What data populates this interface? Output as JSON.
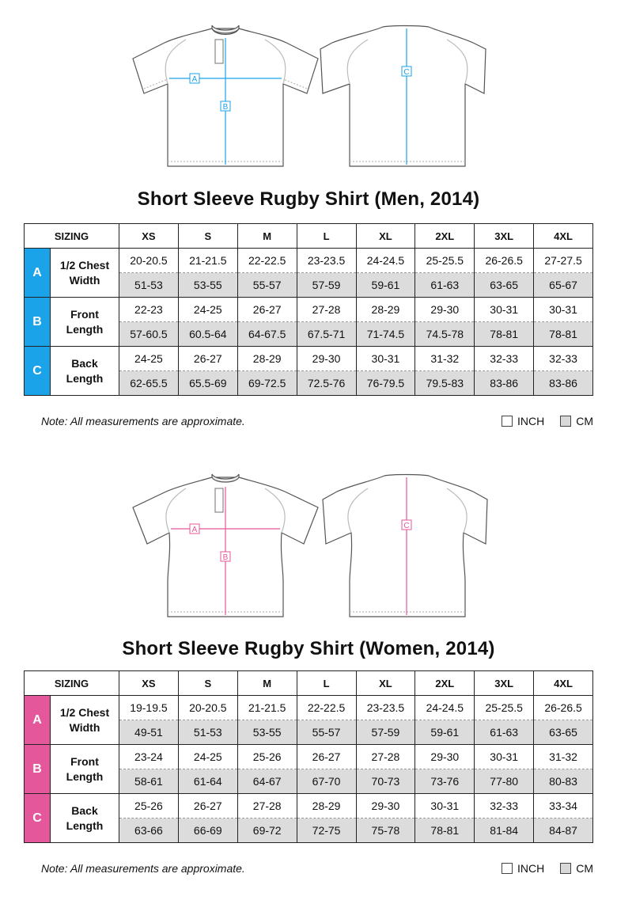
{
  "colors": {
    "men_accent": "#1aa3e8",
    "women_accent": "#e5579b",
    "cm_row": "#dcdcdc"
  },
  "sizes": [
    "XS",
    "S",
    "M",
    "L",
    "XL",
    "2XL",
    "3XL",
    "4XL"
  ],
  "men": {
    "title": "Short Sleeve Rugby Shirt (Men, 2014)",
    "sizing_label": "SIZING",
    "diagram_labels": [
      "A",
      "B",
      "C"
    ],
    "rows": [
      {
        "letter": "A",
        "label_line1": "1/2 Chest",
        "label_line2": "Width",
        "inch": [
          "20-20.5",
          "21-21.5",
          "22-22.5",
          "23-23.5",
          "24-24.5",
          "25-25.5",
          "26-26.5",
          "27-27.5"
        ],
        "cm": [
          "51-53",
          "53-55",
          "55-57",
          "57-59",
          "59-61",
          "61-63",
          "63-65",
          "65-67"
        ]
      },
      {
        "letter": "B",
        "label_line1": "Front",
        "label_line2": "Length",
        "inch": [
          "22-23",
          "24-25",
          "26-27",
          "27-28",
          "28-29",
          "29-30",
          "30-31",
          "30-31"
        ],
        "cm": [
          "57-60.5",
          "60.5-64",
          "64-67.5",
          "67.5-71",
          "71-74.5",
          "74.5-78",
          "78-81",
          "78-81"
        ]
      },
      {
        "letter": "C",
        "label_line1": "Back",
        "label_line2": "Length",
        "inch": [
          "24-25",
          "26-27",
          "28-29",
          "29-30",
          "30-31",
          "31-32",
          "32-33",
          "32-33"
        ],
        "cm": [
          "62-65.5",
          "65.5-69",
          "69-72.5",
          "72.5-76",
          "76-79.5",
          "79.5-83",
          "83-86",
          "83-86"
        ]
      }
    ],
    "note": "Note: All measurements are approximate.",
    "legend_inch": "INCH",
    "legend_cm": "CM"
  },
  "women": {
    "title": "Short Sleeve Rugby Shirt (Women, 2014)",
    "sizing_label": "SIZING",
    "diagram_labels": [
      "A",
      "B",
      "C"
    ],
    "rows": [
      {
        "letter": "A",
        "label_line1": "1/2 Chest",
        "label_line2": "Width",
        "inch": [
          "19-19.5",
          "20-20.5",
          "21-21.5",
          "22-22.5",
          "23-23.5",
          "24-24.5",
          "25-25.5",
          "26-26.5"
        ],
        "cm": [
          "49-51",
          "51-53",
          "53-55",
          "55-57",
          "57-59",
          "59-61",
          "61-63",
          "63-65"
        ]
      },
      {
        "letter": "B",
        "label_line1": "Front",
        "label_line2": "Length",
        "inch": [
          "23-24",
          "24-25",
          "25-26",
          "26-27",
          "27-28",
          "29-30",
          "30-31",
          "31-32"
        ],
        "cm": [
          "58-61",
          "61-64",
          "64-67",
          "67-70",
          "70-73",
          "73-76",
          "77-80",
          "80-83"
        ]
      },
      {
        "letter": "C",
        "label_line1": "Back",
        "label_line2": "Length",
        "inch": [
          "25-26",
          "26-27",
          "27-28",
          "28-29",
          "29-30",
          "30-31",
          "32-33",
          "33-34"
        ],
        "cm": [
          "63-66",
          "66-69",
          "69-72",
          "72-75",
          "75-78",
          "78-81",
          "81-84",
          "84-87"
        ]
      }
    ],
    "note": "Note: All measurements are approximate.",
    "legend_inch": "INCH",
    "legend_cm": "CM"
  }
}
